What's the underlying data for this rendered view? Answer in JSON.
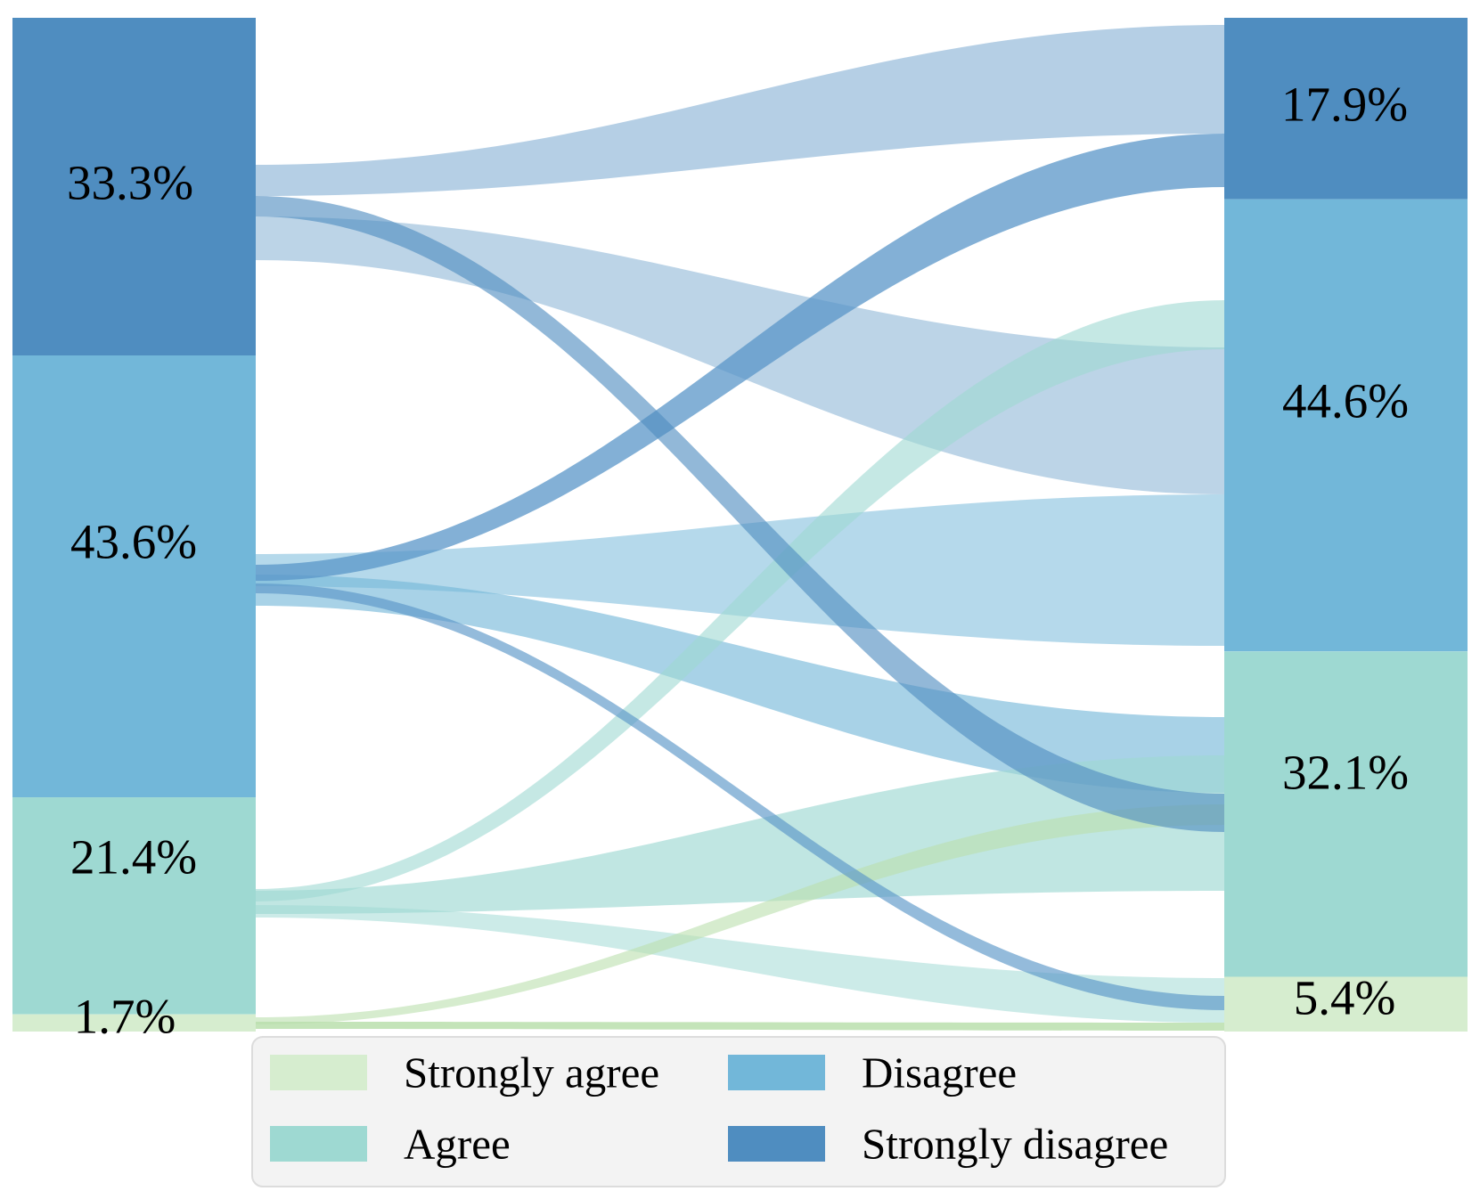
{
  "chart_data": {
    "type": "alluvial",
    "title": "",
    "unit": "percent",
    "legend_position": "bottom",
    "background_color": "#ffffff",
    "categories": [
      {
        "id": "strongly_agree",
        "label": "Strongly agree",
        "color": "#d6edcf"
      },
      {
        "id": "agree",
        "label": "Agree",
        "color": "#9ed9d2"
      },
      {
        "id": "disagree",
        "label": "Disagree",
        "color": "#72b7d9"
      },
      {
        "id": "strongly_disagree",
        "label": "Strongly disagree",
        "color": "#4f8dc0"
      }
    ],
    "nodes": {
      "left": [
        {
          "id": "strongly_disagree",
          "value": 33.3,
          "label": "33.3%"
        },
        {
          "id": "disagree",
          "value": 43.6,
          "label": "43.6%"
        },
        {
          "id": "agree",
          "value": 21.4,
          "label": "21.4%"
        },
        {
          "id": "strongly_agree",
          "value": 1.7,
          "label": "1.7%"
        }
      ],
      "right": [
        {
          "id": "strongly_disagree",
          "value": 17.9,
          "label": "17.9%"
        },
        {
          "id": "disagree",
          "value": 44.6,
          "label": "44.6%"
        },
        {
          "id": "agree",
          "value": 32.1,
          "label": "32.1%"
        },
        {
          "id": "strongly_agree",
          "value": 5.4,
          "label": "5.4%"
        }
      ]
    },
    "flows": [
      {
        "from": "strongly_disagree",
        "to": "disagree",
        "value": 13.0,
        "color": "rgba(79,141,192,0.38)"
      },
      {
        "from": "disagree",
        "to": "disagree",
        "value": 26.0,
        "color": "rgba(114,183,217,0.52)"
      },
      {
        "from": "disagree",
        "to": "agree",
        "value": 9.8,
        "color": "rgba(114,183,217,0.62)"
      },
      {
        "from": "agree",
        "to": "disagree",
        "value": 5.6,
        "color": "rgba(158,217,210,0.60)"
      },
      {
        "from": "agree",
        "to": "agree",
        "value": 12.5,
        "color": "rgba(158,217,210,0.65)"
      },
      {
        "from": "agree",
        "to": "strongly_agree",
        "value": 3.3,
        "color": "rgba(158,217,210,0.52)"
      },
      {
        "from": "strongly_agree",
        "to": "agree",
        "value": 1.0,
        "color": "rgba(186,223,173,0.60)"
      },
      {
        "from": "strongly_agree",
        "to": "strongly_agree",
        "value": 0.7,
        "color": "rgba(186,223,173,0.85)"
      },
      {
        "from": "strongly_disagree",
        "to": "strongly_disagree",
        "value": 11.5,
        "color": "rgba(79,141,192,0.42)"
      },
      {
        "from": "disagree",
        "to": "strongly_agree",
        "value": 1.4,
        "color": "rgba(90,150,200,0.65)"
      },
      {
        "from": "disagree",
        "to": "strongly_disagree",
        "value": 6.4,
        "color": "rgba(90,150,200,0.75)"
      },
      {
        "from": "strongly_disagree",
        "to": "agree",
        "value": 8.8,
        "color": "rgba(79,141,192,0.62)"
      }
    ],
    "legend": {
      "border_color": "#dcdcdc",
      "fill_color": "#f3f3f3",
      "text_color": "#000000"
    }
  }
}
